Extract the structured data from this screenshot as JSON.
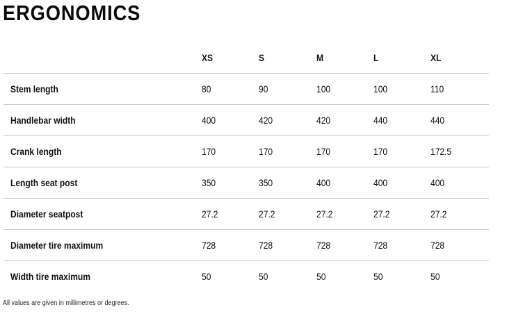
{
  "title": "ERGONOMICS",
  "table": {
    "sizes": [
      "XS",
      "S",
      "M",
      "L",
      "XL"
    ],
    "rows": [
      {
        "label": "Stem length",
        "values": [
          "80",
          "90",
          "100",
          "100",
          "110"
        ]
      },
      {
        "label": "Handlebar width",
        "values": [
          "400",
          "420",
          "420",
          "440",
          "440"
        ]
      },
      {
        "label": "Crank length",
        "values": [
          "170",
          "170",
          "170",
          "170",
          "172.5"
        ]
      },
      {
        "label": "Length seat post",
        "values": [
          "350",
          "350",
          "400",
          "400",
          "400"
        ]
      },
      {
        "label": "Diameter seatpost",
        "values": [
          "27.2",
          "27.2",
          "27.2",
          "27.2",
          "27.2"
        ]
      },
      {
        "label": "Diameter tire maximum",
        "values": [
          "728",
          "728",
          "728",
          "728",
          "728"
        ]
      },
      {
        "label": "Width tire maximum",
        "values": [
          "50",
          "50",
          "50",
          "50",
          "50"
        ]
      }
    ]
  },
  "footnote": "All values are given in millimetres or degrees."
}
